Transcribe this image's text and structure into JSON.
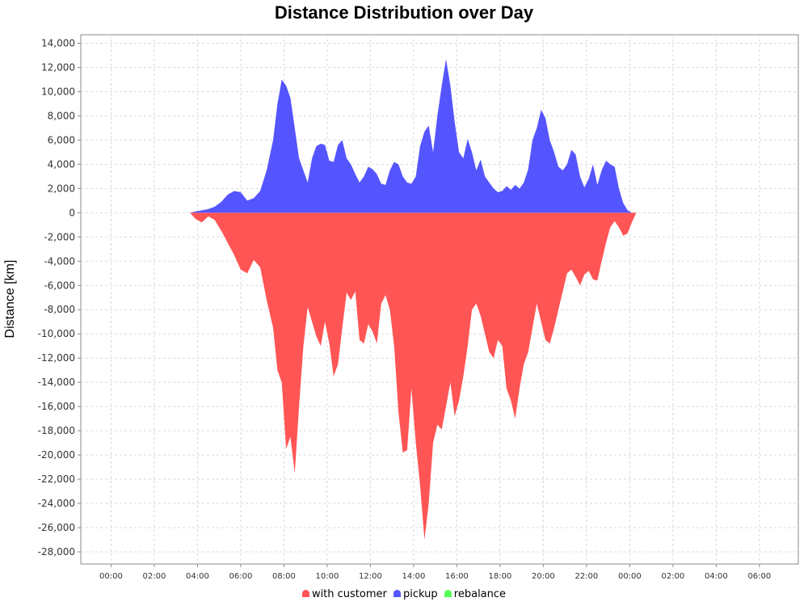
{
  "chart_data": {
    "type": "area",
    "title": "Distance Distribution over Day",
    "ylabel": "Distance [km]",
    "xlabel": "",
    "ylim": [
      -29000,
      14700
    ],
    "y_ticks": [
      14000,
      12000,
      10000,
      8000,
      6000,
      4000,
      2000,
      0,
      -2000,
      -4000,
      -6000,
      -8000,
      -10000,
      -12000,
      -14000,
      -16000,
      -18000,
      -20000,
      -22000,
      -24000,
      -26000,
      -28000
    ],
    "y_tick_labels": [
      "14,000",
      "12,000",
      "10,000",
      "8,000",
      "6,000",
      "4,000",
      "2,000",
      "0",
      "-2,000",
      "-4,000",
      "-6,000",
      "-8,000",
      "-10,000",
      "-12,000",
      "-14,000",
      "-16,000",
      "-18,000",
      "-20,000",
      "-22,000",
      "-24,000",
      "-26,000",
      "-28,000"
    ],
    "x_range_hours": [
      -1.4,
      31.8
    ],
    "x_ticks_hours": [
      0,
      2,
      4,
      6,
      8,
      10,
      12,
      14,
      16,
      18,
      20,
      22,
      24,
      26,
      28,
      30
    ],
    "x_tick_labels": [
      "00:00",
      "02:00",
      "04:00",
      "06:00",
      "08:00",
      "10:00",
      "12:00",
      "14:00",
      "16:00",
      "18:00",
      "20:00",
      "22:00",
      "00:00",
      "02:00",
      "04:00",
      "06:00"
    ],
    "grid": true,
    "legend_position": "bottom",
    "x_hours": [
      3.65,
      3.9,
      4.2,
      4.5,
      4.8,
      5.1,
      5.4,
      5.7,
      6.0,
      6.3,
      6.6,
      6.9,
      7.2,
      7.5,
      7.7,
      7.9,
      8.1,
      8.3,
      8.5,
      8.7,
      8.9,
      9.1,
      9.3,
      9.5,
      9.7,
      9.9,
      10.1,
      10.3,
      10.5,
      10.7,
      10.9,
      11.1,
      11.3,
      11.5,
      11.7,
      11.9,
      12.1,
      12.3,
      12.5,
      12.7,
      12.9,
      13.1,
      13.3,
      13.5,
      13.7,
      13.9,
      14.1,
      14.3,
      14.5,
      14.7,
      14.9,
      15.1,
      15.3,
      15.5,
      15.7,
      15.9,
      16.1,
      16.3,
      16.5,
      16.7,
      16.9,
      17.1,
      17.3,
      17.5,
      17.7,
      17.9,
      18.1,
      18.3,
      18.5,
      18.7,
      18.9,
      19.1,
      19.3,
      19.5,
      19.7,
      19.9,
      20.1,
      20.3,
      20.5,
      20.7,
      20.9,
      21.1,
      21.3,
      21.5,
      21.7,
      21.9,
      22.1,
      22.3,
      22.5,
      22.7,
      22.9,
      23.1,
      23.3,
      23.5,
      23.7,
      23.9,
      24.1,
      24.3,
      24.5,
      24.7,
      24.9,
      25.1,
      25.3,
      25.5,
      25.7,
      25.9,
      26.1,
      26.3,
      26.5,
      26.7,
      26.9,
      27.1,
      27.3,
      27.5,
      27.7,
      27.9,
      28.1,
      28.3,
      28.5,
      28.7,
      28.9,
      29.1,
      29.3,
      29.5,
      29.7
    ],
    "series": [
      {
        "name": "with customer",
        "color": "#ff5555",
        "values": [
          0,
          -500,
          -800,
          -300,
          -600,
          -1500,
          -2500,
          -3500,
          -4700,
          -5000,
          -3900,
          -4500,
          -7200,
          -9500,
          -13000,
          -14000,
          -19500,
          -18500,
          -21500,
          -16000,
          -11000,
          -7800,
          -9000,
          -10200,
          -11000,
          -9000,
          -10800,
          -13500,
          -12500,
          -9500,
          -6600,
          -7200,
          -6500,
          -10500,
          -10800,
          -9200,
          -9800,
          -10800,
          -7500,
          -6800,
          -8000,
          -11000,
          -16500,
          -19800,
          -19600,
          -14500,
          -19000,
          -22500,
          -27000,
          -24000,
          -19000,
          -17500,
          -17900,
          -16000,
          -14000,
          -16800,
          -15500,
          -13500,
          -11000,
          -8000,
          -7500,
          -8500,
          -10000,
          -11500,
          -12000,
          -10500,
          -11000,
          -14500,
          -15500,
          -17000,
          -14500,
          -12500,
          -11500,
          -9500,
          -7500,
          -9000,
          -10500,
          -10800,
          -9500,
          -8000,
          -6500,
          -5000,
          -4700,
          -5300,
          -6000,
          -5100,
          -4800,
          -5500,
          -5600,
          -4000,
          -2500,
          -1200,
          -700,
          -1200,
          -1900,
          -1700,
          -800,
          0,
          0,
          0,
          0,
          0,
          0,
          0,
          0,
          0,
          0,
          0,
          0,
          0,
          0,
          0,
          0,
          0,
          0,
          0,
          0,
          0,
          0,
          0,
          0,
          0,
          0
        ]
      },
      {
        "name": "pickup",
        "color": "#5555ff",
        "values": [
          0,
          100,
          200,
          300,
          500,
          900,
          1500,
          1800,
          1700,
          1000,
          1200,
          1800,
          3500,
          6000,
          9000,
          11000,
          10500,
          9500,
          7000,
          4500,
          3500,
          2500,
          4500,
          5500,
          5700,
          5600,
          4300,
          4200,
          5600,
          6000,
          4500,
          4000,
          3200,
          2500,
          3000,
          3800,
          3600,
          3200,
          2400,
          2300,
          3500,
          4200,
          4000,
          3000,
          2500,
          2400,
          3000,
          5500,
          6700,
          7200,
          5000,
          8000,
          10500,
          12700,
          10500,
          7500,
          5000,
          4500,
          6100,
          5000,
          3500,
          4400,
          3000,
          2500,
          2000,
          1700,
          1800,
          2200,
          1900,
          2300,
          2000,
          2500,
          3600,
          6000,
          7000,
          8500,
          7800,
          6000,
          5000,
          3800,
          3500,
          4000,
          5200,
          4800,
          3000,
          2100,
          2800,
          4000,
          2300,
          3500,
          4300,
          4000,
          3800,
          2000,
          800,
          200,
          0,
          0,
          0,
          0,
          0,
          0,
          0,
          0,
          0,
          0,
          0,
          0,
          0,
          0,
          0,
          0,
          0,
          0,
          0,
          0,
          0,
          0,
          0,
          0,
          0,
          0
        ]
      },
      {
        "name": "rebalance",
        "color": "#55ff55",
        "values": []
      }
    ]
  },
  "legend": {
    "items": [
      {
        "label": "with customer",
        "color": "#ff5555"
      },
      {
        "label": "pickup",
        "color": "#5555ff"
      },
      {
        "label": "rebalance",
        "color": "#55ff55"
      }
    ]
  }
}
